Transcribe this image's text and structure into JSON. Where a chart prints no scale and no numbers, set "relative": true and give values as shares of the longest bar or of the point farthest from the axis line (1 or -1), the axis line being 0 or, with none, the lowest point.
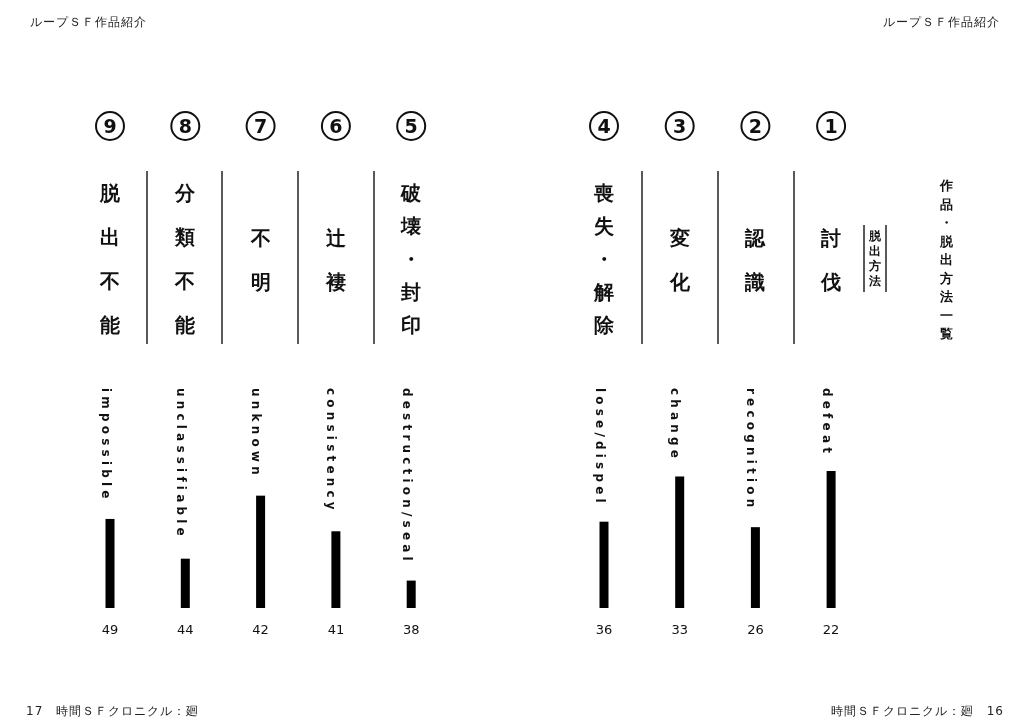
{
  "chart_data": {
    "type": "bar",
    "relative": true,
    "title": "作品・脱出方法一覧",
    "color": "#000000",
    "categories": [
      "impossible",
      "unclassifiable",
      "unknown",
      "consistency",
      "destruction/seal",
      "lose/dispel",
      "change",
      "recognition",
      "defeat"
    ],
    "values": [
      0.65,
      0.36,
      0.82,
      0.56,
      0.2,
      0.63,
      0.96,
      0.59,
      1
    ],
    "annotations": [
      "ループＳＦ作品紹介",
      "ループＳＦ作品紹介",
      "17　時間ＳＦクロニクル：廻",
      "時間ＳＦクロニクル：廻　16",
      "脱出方法",
      "9",
      "脱出不能",
      "49",
      "8",
      "分類不能",
      "44",
      "7",
      "不明",
      "42",
      "6",
      "辻褄",
      "41",
      "5",
      "破壊・封印",
      "38",
      "4",
      "喪失・解除",
      "36",
      "3",
      "変化",
      "33",
      "2",
      "認識",
      "26",
      "1",
      "討伐",
      "22"
    ]
  }
}
